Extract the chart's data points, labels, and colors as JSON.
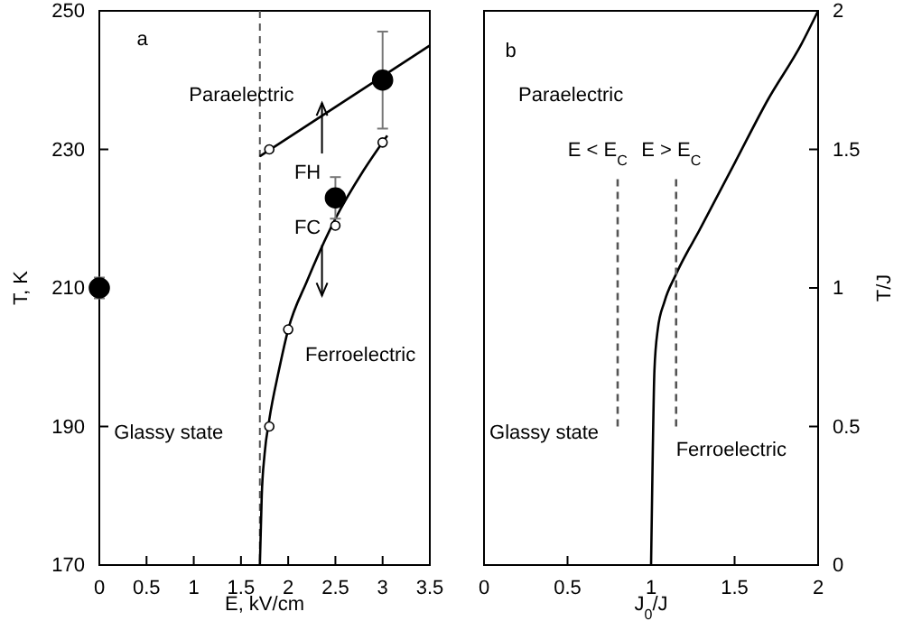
{
  "chart_data": [
    {
      "type": "line",
      "xlabel": "E, kV/cm",
      "ylabel": "T, K",
      "xlim": [
        0,
        3.5
      ],
      "ylim": [
        170,
        250
      ],
      "xticks": [
        0,
        0.5,
        1,
        1.5,
        2,
        2.5,
        3,
        3.5
      ],
      "yticks": [
        170,
        190,
        210,
        230,
        250
      ],
      "grid": false,
      "ref_lines": [
        {
          "axis": "x",
          "value": 1.7,
          "color": "#555555",
          "line_style": "dashed"
        }
      ],
      "series": [
        {
          "color": "#000000",
          "x": [
            1.7,
            3.5
          ],
          "values": [
            229,
            245
          ]
        },
        {
          "color": "#000000",
          "x": [
            1.7,
            1.72,
            1.75,
            1.8,
            1.9,
            2,
            2.2,
            2.5,
            2.8,
            3.05
          ],
          "values": [
            170,
            180,
            186,
            191,
            198,
            204,
            211,
            220,
            227,
            232
          ]
        },
        {
          "type": "scatter",
          "marker": "circle",
          "color": "#ffffff",
          "x": [
            1.8,
            1.8,
            2,
            2.5,
            3
          ],
          "values": [
            230,
            190,
            204,
            219,
            231
          ]
        },
        {
          "type": "scatter",
          "marker": "circle",
          "color": "#000000",
          "x": [
            0,
            2.5,
            3
          ],
          "values": [
            210,
            223,
            240
          ],
          "errors": [
            1.5,
            3,
            7
          ]
        }
      ],
      "annotations": [
        "a",
        "Paraelectric",
        "FH",
        "FC",
        "Ferroelectric",
        "Glassy state"
      ]
    },
    {
      "type": "line",
      "xlabel": "J$_{0}$/J",
      "y2label": "T/J",
      "xlim": [
        0,
        2
      ],
      "y2lim": [
        0,
        2
      ],
      "xticks": [
        0,
        0.5,
        1,
        1.5,
        2
      ],
      "y2ticks": [
        0,
        0.5,
        1,
        1.5,
        2
      ],
      "grid": false,
      "series": [
        {
          "axis": "y2",
          "color": "#000000",
          "x": [
            1,
            1.01,
            1.02,
            1.04,
            1.08,
            1.15,
            1.3,
            1.5,
            1.7,
            1.9,
            2
          ],
          "values": [
            0,
            0.4,
            0.7,
            0.85,
            0.95,
            1.05,
            1.22,
            1.45,
            1.68,
            1.88,
            2
          ]
        },
        {
          "axis": "y2",
          "line_style": "dashed",
          "color": "#555555",
          "x": [
            0.8,
            0.8
          ],
          "values": [
            0.5,
            1.4
          ]
        },
        {
          "axis": "y2",
          "line_style": "dashed",
          "color": "#555555",
          "x": [
            1.15,
            1.15
          ],
          "values": [
            0.5,
            1.4
          ]
        }
      ],
      "annotations": [
        "b",
        "Paraelectric",
        "E < E$_{C}$",
        "E > E$_{C}$",
        "Glassy state",
        "Ferroelectric"
      ]
    }
  ]
}
